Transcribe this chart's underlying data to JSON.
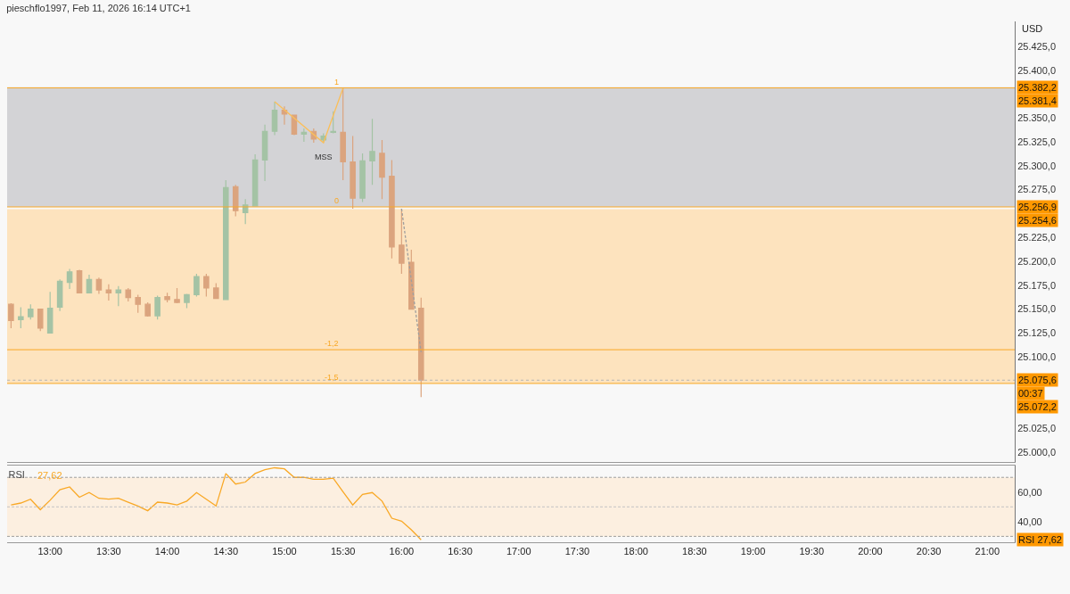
{
  "chart_data": [
    {
      "type": "candlestick",
      "title": "pieschflo1997, Feb 11, 2026 16:14 UTC+1",
      "ylabel": "USD",
      "x": [
        "2026-02-11T12:40",
        "2026-02-11T12:45",
        "2026-02-11T12:50",
        "2026-02-11T12:55",
        "2026-02-11T13:00",
        "2026-02-11T13:05",
        "2026-02-11T13:10",
        "2026-02-11T13:15",
        "2026-02-11T13:20",
        "2026-02-11T13:25",
        "2026-02-11T13:30",
        "2026-02-11T13:35",
        "2026-02-11T13:40",
        "2026-02-11T13:45",
        "2026-02-11T13:50",
        "2026-02-11T13:55",
        "2026-02-11T14:00",
        "2026-02-11T14:05",
        "2026-02-11T14:10",
        "2026-02-11T14:15",
        "2026-02-11T14:20",
        "2026-02-11T14:25",
        "2026-02-11T14:30",
        "2026-02-11T14:35",
        "2026-02-11T14:40",
        "2026-02-11T14:45",
        "2026-02-11T14:50",
        "2026-02-11T14:55",
        "2026-02-11T15:00",
        "2026-02-11T15:05",
        "2026-02-11T15:10",
        "2026-02-11T15:15",
        "2026-02-11T15:20",
        "2026-02-11T15:25",
        "2026-02-11T15:30",
        "2026-02-11T15:35",
        "2026-02-11T15:40",
        "2026-02-11T15:45",
        "2026-02-11T15:50",
        "2026-02-11T15:55",
        "2026-02-11T16:00",
        "2026-02-11T16:05",
        "2026-02-11T16:10"
      ],
      "ohlc": [
        [
          25155,
          25156,
          25130,
          25138
        ],
        [
          25139,
          25152,
          25130,
          25142
        ],
        [
          25142,
          25155,
          25139,
          25150
        ],
        [
          25150,
          25150,
          25127,
          25130
        ],
        [
          25125,
          25168,
          25125,
          25151
        ],
        [
          25152,
          25181,
          25148,
          25179
        ],
        [
          25178,
          25192,
          25171,
          25189
        ],
        [
          25190,
          25191,
          25167,
          25167
        ],
        [
          25167,
          25186,
          25167,
          25181
        ],
        [
          25181,
          25183,
          25166,
          25170
        ],
        [
          25170,
          25176,
          25159,
          25167
        ],
        [
          25167,
          25174,
          25153,
          25170
        ],
        [
          25170,
          25172,
          25158,
          25162
        ],
        [
          25162,
          25165,
          25146,
          25155
        ],
        [
          25155,
          25157,
          25142,
          25143
        ],
        [
          25143,
          25164,
          25139,
          25162
        ],
        [
          25163,
          25167,
          25157,
          25160
        ],
        [
          25160,
          25172,
          25156,
          25157
        ],
        [
          25157,
          25166,
          25151,
          25165
        ],
        [
          25165,
          25187,
          25163,
          25184
        ],
        [
          25184,
          25187,
          25163,
          25172
        ],
        [
          25172,
          25177,
          25161,
          25161
        ],
        [
          25160,
          25285,
          25160,
          25277
        ],
        [
          25278,
          25280,
          25247,
          25253
        ],
        [
          25251,
          25265,
          25239,
          25259
        ],
        [
          25258,
          25312,
          25258,
          25306
        ],
        [
          25306,
          25343,
          25284,
          25336
        ],
        [
          25336,
          25367,
          25332,
          25358
        ],
        [
          25358,
          25362,
          25343,
          25354
        ],
        [
          25353,
          25353,
          25332,
          25333
        ],
        [
          25333,
          25339,
          25325,
          25335
        ],
        [
          25336,
          25339,
          25324,
          25328
        ],
        [
          25327,
          25334,
          25324,
          25331
        ],
        [
          25335,
          25357,
          25334,
          25336
        ],
        [
          25335,
          25381,
          25285,
          25304
        ],
        [
          25304,
          25331,
          25255,
          25266
        ],
        [
          25266,
          25313,
          25262,
          25305
        ],
        [
          25305,
          25349,
          25280,
          25315
        ],
        [
          25313,
          25327,
          25265,
          25288
        ],
        [
          25289,
          25306,
          25203,
          25215
        ],
        [
          25217,
          25255,
          25187,
          25198
        ],
        [
          25199,
          25212,
          25150,
          25150
        ],
        [
          25151,
          25162,
          25058,
          25075.6
        ]
      ],
      "colors": [
        "#dba47e",
        "#a4c3a5",
        "#a4c3a5",
        "#dba47e",
        "#a4c3a5",
        "#a4c3a5",
        "#a4c3a5",
        "#dba47e",
        "#a4c3a5",
        "#dba47e",
        "#dba47e",
        "#a4c3a5",
        "#dba47e",
        "#dba47e",
        "#dba47e",
        "#a4c3a5",
        "#dba47e",
        "#dba47e",
        "#a4c3a5",
        "#a4c3a5",
        "#dba47e",
        "#dba47e",
        "#a4c3a5",
        "#dba47e",
        "#a4c3a5",
        "#a4c3a5",
        "#a4c3a5",
        "#a4c3a5",
        "#dba47e",
        "#dba47e",
        "#a4c3a5",
        "#dba47e",
        "#a4c3a5",
        "#a4c3a5",
        "#dba47e",
        "#dba47e",
        "#a4c3a5",
        "#a4c3a5",
        "#dba47e",
        "#dba47e",
        "#dba47e",
        "#dba47e",
        "#dba47e"
      ],
      "series": [
        {
          "type": "line",
          "color": "#fbbf5a",
          "x": [
            "2026-02-11T14:55",
            "2026-02-11T15:20",
            "2026-02-11T15:30"
          ],
          "values": [
            25367,
            25324,
            25381
          ]
        },
        {
          "type": "line",
          "color": "#9e9e9e",
          "line_style": "dashed",
          "x": [
            "2026-02-11T16:00",
            "2026-02-11T16:10"
          ],
          "values": [
            25255,
            25105
          ]
        }
      ],
      "xlim": [
        "2026-02-11T12:38",
        "2026-02-11T21:14"
      ],
      "ylim": [
        24990,
        25451
      ],
      "yticks": [
        {
          "value": 25000,
          "label": "25.000,0"
        },
        {
          "value": 25025,
          "label": "25.025,0"
        },
        {
          "value": 25075,
          "label": null
        },
        {
          "value": 25100,
          "label": "25.100,0"
        },
        {
          "value": 25125,
          "label": "25.125,0"
        },
        {
          "value": 25150,
          "label": "25.150,0"
        },
        {
          "value": 25175,
          "label": "25.175,0"
        },
        {
          "value": 25200,
          "label": "25.200,0"
        },
        {
          "value": 25225,
          "label": "25.225,0"
        },
        {
          "value": 25275,
          "label": "25.275,0"
        },
        {
          "value": 25300,
          "label": "25.300,0"
        },
        {
          "value": 25325,
          "label": "25.325,0"
        },
        {
          "value": 25350,
          "label": "25.350,0"
        },
        {
          "value": 25400,
          "label": "25.400,0"
        },
        {
          "value": 25425,
          "label": "25.425,0"
        }
      ],
      "tick_labels": "y",
      "bands": [
        {
          "axis": "y",
          "from": 25256.9,
          "to": 25382.2,
          "color": "#d3d3d6",
          "label": "25.382,2"
        },
        {
          "axis": "y",
          "from": 25072.2,
          "to": 25254.6,
          "color": "#fde3be",
          "label": "25.254,6"
        }
      ],
      "ref_lines": [
        {
          "axis": "y",
          "value": 25381.4,
          "label": "25.381,4",
          "color": "#f9a825"
        },
        {
          "axis": "y",
          "value": 25256.9,
          "label": "25.256,9",
          "color": "#f9a825"
        },
        {
          "axis": "y",
          "value": 25107.5,
          "color": "#f9a825"
        },
        {
          "axis": "y",
          "value": 25072.2,
          "label": "25.072,2",
          "color": "#f9a825"
        },
        {
          "axis": "y",
          "value": 25075.6,
          "label": "25.075,6",
          "color": "#b5b5b5",
          "line_style": "dotted"
        }
      ],
      "annotations": [
        {
          "text": "MSS",
          "x": "2026-02-11T15:20",
          "y": 25324
        },
        {
          "text": "1",
          "x": "2026-02-11T15:30",
          "y": 25381.4
        },
        {
          "text": "0",
          "x": "2026-02-11T15:30",
          "y": 25256.9
        },
        {
          "text": "-1,2",
          "x": "2026-02-11T15:30",
          "y": 25107.5
        },
        {
          "text": "-1,5",
          "x": "2026-02-11T15:30",
          "y": 25072.2
        },
        "00:37"
      ]
    },
    {
      "type": "line",
      "title": "RSI",
      "color": "#f9a825",
      "x": [
        "2026-02-11T12:40",
        "2026-02-11T12:45",
        "2026-02-11T12:50",
        "2026-02-11T12:55",
        "2026-02-11T13:00",
        "2026-02-11T13:05",
        "2026-02-11T13:10",
        "2026-02-11T13:15",
        "2026-02-11T13:20",
        "2026-02-11T13:25",
        "2026-02-11T13:30",
        "2026-02-11T13:35",
        "2026-02-11T13:40",
        "2026-02-11T13:45",
        "2026-02-11T13:50",
        "2026-02-11T13:55",
        "2026-02-11T14:00",
        "2026-02-11T14:05",
        "2026-02-11T14:10",
        "2026-02-11T14:15",
        "2026-02-11T14:20",
        "2026-02-11T14:25",
        "2026-02-11T14:30",
        "2026-02-11T14:35",
        "2026-02-11T14:40",
        "2026-02-11T14:45",
        "2026-02-11T14:50",
        "2026-02-11T14:55",
        "2026-02-11T15:00",
        "2026-02-11T15:05",
        "2026-02-11T15:10",
        "2026-02-11T15:15",
        "2026-02-11T15:20",
        "2026-02-11T15:25",
        "2026-02-11T15:30",
        "2026-02-11T15:35",
        "2026-02-11T15:40",
        "2026-02-11T15:45",
        "2026-02-11T15:50",
        "2026-02-11T15:55",
        "2026-02-11T16:00",
        "2026-02-11T16:05",
        "2026-02-11T16:10"
      ],
      "values": [
        51.3,
        52.6,
        55.2,
        48.1,
        54.5,
        61.6,
        63.5,
        56.5,
        59.7,
        55.8,
        55.2,
        55.8,
        53.2,
        50.6,
        47.4,
        53.2,
        52.6,
        51.3,
        53.9,
        59.7,
        55.2,
        50.6,
        72.6,
        65.5,
        66.8,
        72.6,
        75.2,
        76.5,
        75.8,
        70.0,
        70.0,
        68.7,
        68.7,
        69.4,
        60.3,
        51.3,
        58.4,
        59.7,
        53.9,
        42.3,
        40.3,
        34.5,
        27.62
      ],
      "xlim": [
        "2026-02-11T12:38",
        "2026-02-11T21:14"
      ],
      "xticks": [
        {
          "value": "2026-02-11T13:00",
          "label": "13:00"
        },
        {
          "value": "2026-02-11T13:30",
          "label": "13:30"
        },
        {
          "value": "2026-02-11T14:00",
          "label": "14:00"
        },
        {
          "value": "2026-02-11T14:30",
          "label": "14:30"
        },
        {
          "value": "2026-02-11T15:00",
          "label": "15:00"
        },
        {
          "value": "2026-02-11T15:30",
          "label": "15:30"
        },
        {
          "value": "2026-02-11T16:00",
          "label": "16:00"
        },
        {
          "value": "2026-02-11T16:30",
          "label": "16:30"
        },
        {
          "value": "2026-02-11T17:00",
          "label": "17:00"
        },
        {
          "value": "2026-02-11T17:30",
          "label": "17:30"
        },
        {
          "value": "2026-02-11T18:00",
          "label": "18:00"
        },
        {
          "value": "2026-02-11T18:30",
          "label": "18:30"
        },
        {
          "value": "2026-02-11T19:00",
          "label": "19:00"
        },
        {
          "value": "2026-02-11T19:30",
          "label": "19:30"
        },
        {
          "value": "2026-02-11T20:00",
          "label": "20:00"
        },
        {
          "value": "2026-02-11T20:30",
          "label": "20:30"
        },
        {
          "value": "2026-02-11T21:00",
          "label": "21:00"
        }
      ],
      "ylim": [
        26,
        78
      ],
      "yticks": [
        {
          "value": 40,
          "label": "40,00"
        },
        {
          "value": 60,
          "label": "60,00"
        }
      ],
      "bands": [
        {
          "axis": "y",
          "from": 30,
          "to": 70,
          "color": "#fcefe0"
        }
      ],
      "ref_lines": [
        {
          "axis": "y",
          "value": 70,
          "color": "#9e9e9e",
          "line_style": "dashed"
        },
        {
          "axis": "y",
          "value": 50,
          "color": "#c4c4c4",
          "line_style": "dashed"
        },
        {
          "axis": "y",
          "value": 30,
          "color": "#9e9e9e",
          "line_style": "dashed"
        }
      ],
      "annotations": [
        "27,62",
        "RSI 27,62"
      ]
    }
  ]
}
